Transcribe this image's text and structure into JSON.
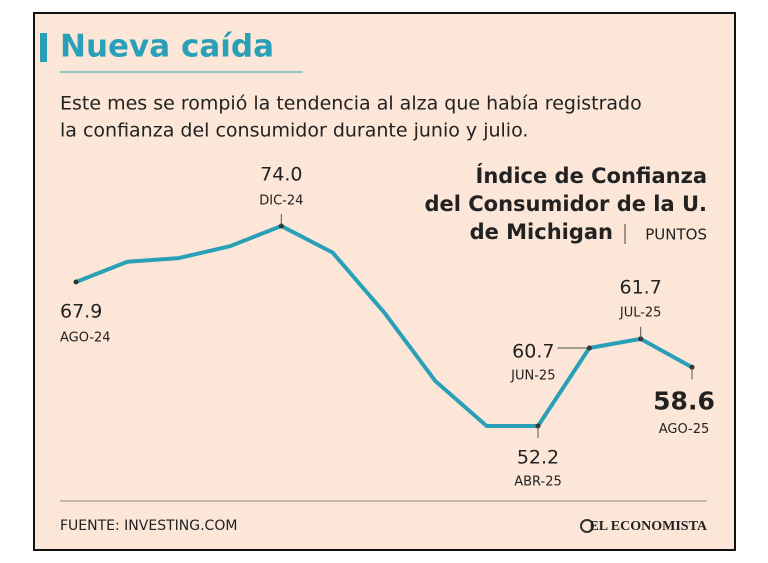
{
  "chart_data": {
    "type": "line",
    "title": "Nueva caída",
    "subtitle": [
      "Este mes se rompió la tendencia al alza que había registrado",
      "la confianza del consumidor durante junio y julio."
    ],
    "chart_title": [
      "Índice de Confianza",
      "del Consumidor de la U.",
      "de Michigan"
    ],
    "unit": "PUNTOS",
    "categories": [
      "AGO-24",
      null,
      null,
      null,
      "DIC-24",
      null,
      null,
      null,
      null,
      "ABR-25",
      "JUN-25",
      "JUL-25",
      "AGO-25"
    ],
    "values": [
      67.9,
      70.1,
      70.5,
      71.8,
      74.0,
      71.1,
      64.6,
      57.1,
      52.2,
      52.2,
      60.7,
      61.7,
      58.6
    ],
    "value_labels": [
      "67.9",
      null,
      null,
      null,
      "74.0",
      null,
      null,
      null,
      null,
      "52.2",
      "60.7",
      "61.7",
      "58.6"
    ],
    "color": "#2aa0b8",
    "source": "FUENTE: INVESTING.COM",
    "logo": "EL ECONOMISTA"
  }
}
